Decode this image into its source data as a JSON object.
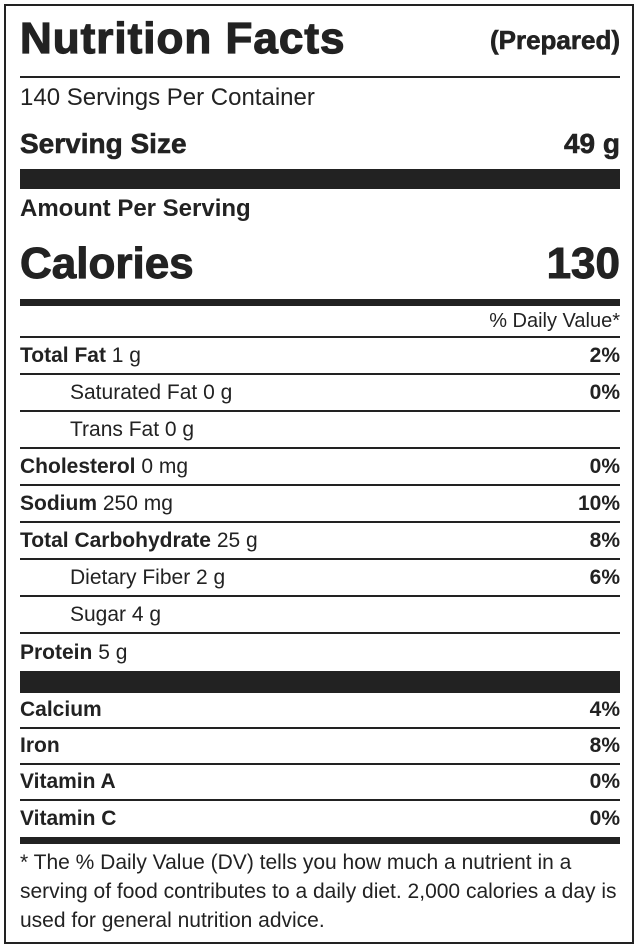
{
  "header": {
    "title": "Nutrition Facts",
    "subtitle": "(Prepared)"
  },
  "servings": "140 Servings Per Container",
  "serving_size": {
    "label": "Serving Size",
    "value": "49 g"
  },
  "amount_per_serving": "Amount Per Serving",
  "calories": {
    "label": "Calories",
    "value": "130"
  },
  "daily_value_header": "% Daily Value*",
  "nutrients": [
    {
      "name": "Total Fat",
      "amount": "1 g",
      "dv": "2%"
    },
    {
      "name": "Saturated Fat 0 g",
      "dv": "0%",
      "indent": true
    },
    {
      "name": "Trans Fat 0 g",
      "indent": true
    },
    {
      "name": "Cholesterol",
      "amount": "0 mg",
      "dv": "0%"
    },
    {
      "name": "Sodium",
      "amount": "250 mg",
      "dv": "10%"
    },
    {
      "name": "Total Carbohydrate",
      "amount": "25 g",
      "dv": "8%"
    },
    {
      "name": "Dietary Fiber 2 g",
      "dv": "6%",
      "indent": true
    },
    {
      "name": "Sugar 4 g",
      "indent": true
    },
    {
      "name": "Protein",
      "amount": "5 g"
    }
  ],
  "vitamins": [
    {
      "name": "Calcium",
      "dv": "4%"
    },
    {
      "name": "Iron",
      "dv": "8%"
    },
    {
      "name": "Vitamin A",
      "dv": "0%"
    },
    {
      "name": "Vitamin C",
      "dv": "0%"
    }
  ],
  "footnote": "* The % Daily Value (DV) tells you how much a nutrient in a serving of food contributes to a daily diet. 2,000 calories a day is used for general nutrition advice."
}
